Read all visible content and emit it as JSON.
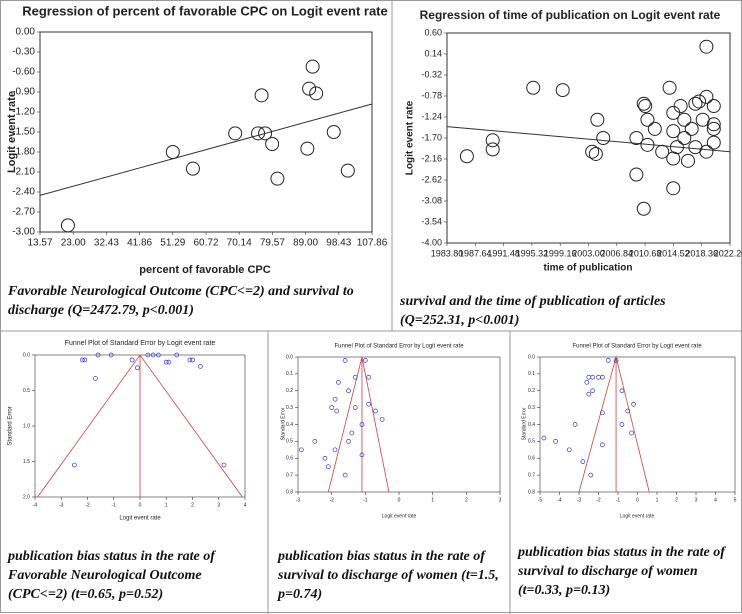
{
  "chart_data": [
    {
      "type": "scatter",
      "title": "Regression of percent of favorable CPC on Logit event rate",
      "x_label": "percent of favorable CPC",
      "y_label": "Logit event rate",
      "caption": "Favorable Neurological Outcome (CPC<=2) and survival to discharge (Q=2472.79, p<0.001)",
      "xlim": [
        13.57,
        107.86
      ],
      "ylim": [
        -3,
        0
      ],
      "xticks": [
        13.57,
        {
          "value": 23,
          "label": "23.00"
        },
        32.43,
        41.86,
        51.29,
        60.72,
        70.14,
        79.57,
        {
          "value": 89,
          "label": "89.00"
        },
        98.43,
        107.86
      ],
      "yticks": [
        {
          "value": 0,
          "label": "0.00"
        },
        {
          "value": -0.3,
          "label": "-0.30"
        },
        {
          "value": -0.6,
          "label": "-0.60"
        },
        {
          "value": -0.9,
          "label": "-0.90"
        },
        {
          "value": -1.2,
          "label": "-1.20"
        },
        {
          "value": -1.5,
          "label": "-1.50"
        },
        {
          "value": -1.8,
          "label": "-1.80"
        },
        {
          "value": -2.1,
          "label": "-2.10"
        },
        {
          "value": -2.4,
          "label": "-2.40"
        },
        {
          "value": -2.7,
          "label": "-2.70"
        },
        {
          "value": -3,
          "label": "-3.00"
        }
      ],
      "x": [
        21.5,
        51.29,
        57,
        69,
        75.5,
        76.5,
        77.5,
        79.5,
        81,
        89.5,
        90,
        91,
        92,
        97,
        101
      ],
      "values": [
        -2.9,
        -1.8,
        -2.05,
        -1.52,
        -1.52,
        -0.95,
        -1.52,
        -1.68,
        -2.2,
        -1.75,
        -0.85,
        -0.52,
        -0.92,
        -1.5,
        -2.08
      ],
      "color": "#222222",
      "fit_line": {
        "x": [
          13.57,
          107.86
        ],
        "values": [
          -2.45,
          -1.08
        ]
      }
    },
    {
      "type": "scatter",
      "title": "Regression of time of publication on Logit event rate",
      "x_label": "time of publication",
      "y_label": "Logit event rate",
      "caption": "survival and the time of publication of articles (Q=252.31, p<0.001)",
      "xlim": [
        1983.8,
        2022.2
      ],
      "ylim": [
        -4,
        0.6
      ],
      "xticks": [
        {
          "value": 1983.8,
          "label": "1983.80"
        },
        1987.64,
        1991.48,
        1995.32,
        1999.16,
        {
          "value": 2003,
          "label": "2003.00"
        },
        2006.84,
        2010.68,
        2014.52,
        2018.36,
        {
          "value": 2022.2,
          "label": "2022.20"
        }
      ],
      "yticks": [
        {
          "value": 0.6,
          "label": "0.60"
        },
        0.14,
        -0.32,
        -0.78,
        -1.24,
        {
          "value": -1.7,
          "label": "-1.70"
        },
        -2.16,
        -2.62,
        -3.08,
        -3.54,
        {
          "value": -4,
          "label": "-4.00"
        }
      ],
      "x": [
        1986.5,
        1990,
        1990,
        1995.5,
        1999.5,
        2003.5,
        2004,
        2004.2,
        2005,
        2009.5,
        2009.5,
        2010.5,
        2010.7,
        2011,
        2010.5,
        2011,
        2012,
        2013,
        2014,
        2014.5,
        2014.5,
        2014.5,
        2014.5,
        2015,
        2015.5,
        2016,
        2016,
        2016.5,
        2017,
        2017.5,
        2017.5,
        2018,
        2018.5,
        2019,
        2019,
        2019,
        2020,
        2020,
        2020,
        2020
      ],
      "values": [
        -2.1,
        -1.95,
        -1.75,
        -0.6,
        -0.65,
        -2.0,
        -2.05,
        -1.3,
        -1.7,
        -1.7,
        -2.5,
        -0.95,
        -1.0,
        -1.3,
        -3.25,
        -1.85,
        -1.5,
        -2.0,
        -0.6,
        -1.15,
        -1.55,
        -2.15,
        -2.8,
        -1.9,
        -1.0,
        -1.3,
        -1.7,
        -2.2,
        -1.5,
        -0.95,
        -1.9,
        -0.9,
        -1.3,
        -0.8,
        0.3,
        -2.0,
        -1.0,
        -1.5,
        -1.8,
        -1.4
      ],
      "color": "#222222",
      "fit_line": {
        "x": [
          1983.8,
          2022.2
        ],
        "values": [
          -1.45,
          -2.0
        ]
      }
    },
    {
      "type": "funnel",
      "title": "Funnel Plot of Standard Error by Logit event rate",
      "x_label": "Logit event rate",
      "y_label": "Standard Error",
      "caption": "publication bias status in the rate of Favorable Neurological Outcome (CPC<=2) (t=0.65, p=0.52)",
      "xlim": [
        -4,
        4
      ],
      "ylim": [
        0,
        2
      ],
      "y_inverted": true,
      "xticks": [
        -4,
        -3,
        -2,
        -1,
        0,
        1,
        2,
        3,
        4
      ],
      "yticks": [
        {
          "value": 0,
          "label": "0.0"
        },
        0.5,
        {
          "value": 1,
          "label": "1.0"
        },
        1.5,
        {
          "value": 2,
          "label": "2.0"
        }
      ],
      "x": [
        -2.2,
        -2.1,
        -1.6,
        -1.1,
        -0.3,
        -0.1,
        0.3,
        0.5,
        0.7,
        1.0,
        1.1,
        1.4,
        1.9,
        2.0,
        2.3,
        -1.7,
        3.2,
        -2.5
      ],
      "values": [
        0.07,
        0.07,
        0,
        0,
        0.07,
        0.18,
        0,
        0,
        0,
        0.1,
        0.1,
        0,
        0.07,
        0.07,
        0.16,
        0.33,
        1.55,
        1.55
      ],
      "color": "#3333cc",
      "line_color": "#d04040",
      "funnel": {
        "x": [
          -3.9,
          0,
          3.9
        ],
        "values": [
          2,
          0,
          2
        ]
      }
    },
    {
      "type": "funnel",
      "title": "Funnel Plot of Standard Error by Logit event rate",
      "x_label": "Logit event rate",
      "y_label": "Standard Error",
      "caption": "publication bias status in the rate of survival to discharge of women (t=1.5, p=0.74)",
      "xlim": [
        -3,
        3
      ],
      "ylim": [
        0,
        0.8
      ],
      "y_inverted": true,
      "xticks": [
        -3,
        -2,
        -1,
        0,
        1,
        2,
        3
      ],
      "yticks": [
        {
          "value": 0,
          "label": "0.0"
        },
        0.1,
        0.2,
        0.3,
        0.4,
        0.5,
        0.6,
        0.7,
        0.8
      ],
      "x": [
        -1.6,
        -1.0,
        -1.3,
        -0.9,
        -1.8,
        -1.5,
        -1.9,
        -2.0,
        -1.85,
        -1.3,
        -0.9,
        -0.7,
        -0.5,
        -1.1,
        -1.4,
        -1.5,
        -2.5,
        -1.9,
        -2.2,
        -1.1,
        -2.1,
        -1.6,
        -2.9
      ],
      "values": [
        0.02,
        0.02,
        0.12,
        0.12,
        0.15,
        0.2,
        0.25,
        0.3,
        0.32,
        0.3,
        0.28,
        0.32,
        0.37,
        0.4,
        0.45,
        0.5,
        0.5,
        0.55,
        0.6,
        0.58,
        0.65,
        0.7,
        0.55
      ],
      "color": "#3333cc",
      "line_color": "#d04040",
      "funnel": {
        "x": [
          -2.1,
          -1.1,
          -0.3
        ],
        "values": [
          0.8,
          0,
          0.8
        ]
      }
    },
    {
      "type": "funnel",
      "title": "Funnel Plot of Standard Error by Logit event rate",
      "x_label": "Logit event rate",
      "y_label": "Standard Error",
      "caption": "publication bias status in the rate of survival to discharge of women (t=0.33, p=0.13)",
      "xlim": [
        -5,
        5
      ],
      "ylim": [
        0,
        0.8
      ],
      "y_inverted": true,
      "xticks": [
        -5,
        -4,
        -3,
        -2,
        -1,
        0,
        1,
        2,
        3,
        4,
        5
      ],
      "yticks": [
        {
          "value": 0,
          "label": "0.0"
        },
        0.1,
        0.2,
        0.3,
        0.4,
        0.5,
        0.6,
        0.7,
        0.8
      ],
      "x": [
        -1.5,
        -1.1,
        -2.3,
        -2.0,
        -1.8,
        -2.5,
        -2.6,
        -2.3,
        -2.5,
        -0.8,
        -0.2,
        -0.5,
        -1.8,
        -3.2,
        -0.8,
        -0.3,
        -4.2,
        -1.8,
        -3.5,
        -2.8,
        -2.4,
        -4.8
      ],
      "values": [
        0.02,
        0.02,
        0.12,
        0.12,
        0.12,
        0.12,
        0.15,
        0.2,
        0.22,
        0.2,
        0.28,
        0.32,
        0.33,
        0.4,
        0.4,
        0.45,
        0.5,
        0.52,
        0.55,
        0.62,
        0.7,
        0.48
      ],
      "color": "#3333cc",
      "line_color": "#d04040",
      "funnel": {
        "x": [
          -3,
          -1.1,
          0.6
        ],
        "values": [
          0.8,
          0,
          0.8
        ]
      }
    }
  ]
}
